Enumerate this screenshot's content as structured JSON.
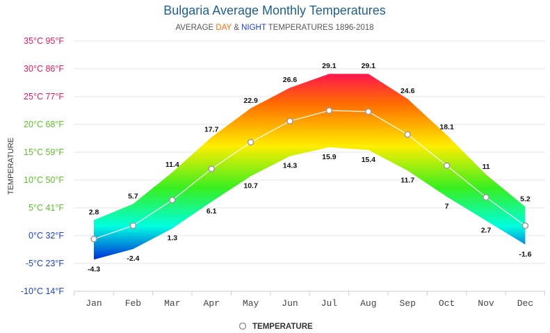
{
  "colors": {
    "title": "#1f5f8b",
    "day": "#ff6a00",
    "night": "#1a3fd1",
    "tick_hot": "#e6195a",
    "tick_warm": "#5fbf2a",
    "tick_cold": "#1a3fd1",
    "mean_line": "#ffffff",
    "marker_stroke": "#9a9a9a"
  },
  "chart_data": {
    "type": "area",
    "title": "Bulgaria Average Monthly Temperatures",
    "subtitle": {
      "prefix": "AVERAGE ",
      "day": "DAY",
      "amp": " & ",
      "night": "NIGHT",
      "suffix": " TEMPERATURES 1896-2018"
    },
    "ylabel": "TEMPERATURE",
    "xlabel": "",
    "ylim": [
      -10,
      35
    ],
    "y_ticks": [
      {
        "value": 35,
        "label": "35°C 95°F"
      },
      {
        "value": 30,
        "label": "30°C 86°F"
      },
      {
        "value": 25,
        "label": "25°C 77°F"
      },
      {
        "value": 20,
        "label": "20°C 68°F"
      },
      {
        "value": 15,
        "label": "15°C 59°F"
      },
      {
        "value": 10,
        "label": "10°C 50°F"
      },
      {
        "value": 5,
        "label": "5°C 41°F"
      },
      {
        "value": 0,
        "label": "0°C 32°F"
      },
      {
        "value": -5,
        "label": "-5°C 23°F"
      },
      {
        "value": -10,
        "label": "-10°C 14°F"
      }
    ],
    "categories": [
      "Jan",
      "Feb",
      "Mar",
      "Apr",
      "May",
      "Jun",
      "Jul",
      "Aug",
      "Sep",
      "Oct",
      "Nov",
      "Dec"
    ],
    "series": [
      {
        "name": "DAY",
        "values": [
          2.8,
          5.7,
          11.4,
          17.7,
          22.9,
          26.6,
          29.1,
          29.1,
          24.6,
          18.1,
          11,
          5.2
        ]
      },
      {
        "name": "NIGHT",
        "values": [
          -4.3,
          -2.4,
          1.3,
          6.1,
          10.7,
          14.3,
          15.9,
          15.4,
          11.7,
          7,
          2.7,
          -1.6
        ]
      },
      {
        "name": "TEMPERATURE",
        "values": [
          -0.6,
          1.8,
          6.4,
          12,
          16.8,
          20.6,
          22.5,
          22.3,
          18.2,
          12.6,
          6.9,
          1.8
        ]
      }
    ],
    "day_labels": [
      "2.8",
      "5.7",
      "11.4",
      "17.7",
      "22.9",
      "26.6",
      "29.1",
      "29.1",
      "24.6",
      "18.1",
      "11",
      "5.2"
    ],
    "night_labels": [
      "-4.3",
      "-2.4",
      "1.3",
      "6.1",
      "10.7",
      "14.3",
      "15.9",
      "15.4",
      "11.7",
      "7",
      "2.7",
      "-1.6"
    ],
    "legend": {
      "label": "TEMPERATURE",
      "position": "bottom-center"
    },
    "grid": true
  }
}
